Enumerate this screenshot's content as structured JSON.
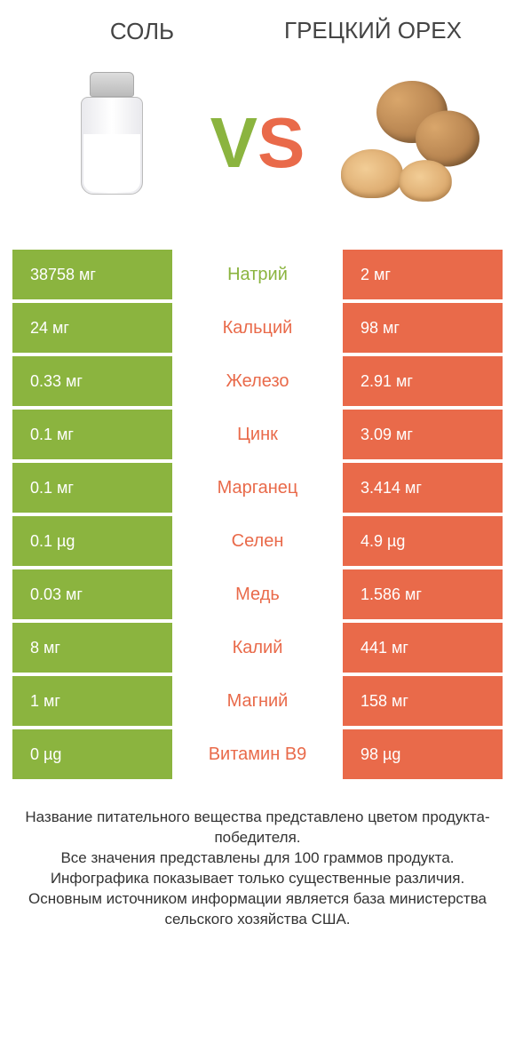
{
  "colors": {
    "green": "#8bb43f",
    "orange": "#e96a4a",
    "bg": "#ffffff",
    "text": "#333333"
  },
  "header": {
    "left_title": "Соль",
    "right_title": "Грецкий орех",
    "vs_v": "V",
    "vs_s": "S"
  },
  "rows": [
    {
      "left": "38758 мг",
      "mid": "Натрий",
      "right": "2 мг",
      "winner": "left"
    },
    {
      "left": "24 мг",
      "mid": "Кальций",
      "right": "98 мг",
      "winner": "right"
    },
    {
      "left": "0.33 мг",
      "mid": "Железо",
      "right": "2.91 мг",
      "winner": "right"
    },
    {
      "left": "0.1 мг",
      "mid": "Цинк",
      "right": "3.09 мг",
      "winner": "right"
    },
    {
      "left": "0.1 мг",
      "mid": "Марганец",
      "right": "3.414 мг",
      "winner": "right"
    },
    {
      "left": "0.1 µg",
      "mid": "Селен",
      "right": "4.9 µg",
      "winner": "right"
    },
    {
      "left": "0.03 мг",
      "mid": "Медь",
      "right": "1.586 мг",
      "winner": "right"
    },
    {
      "left": "8 мг",
      "mid": "Калий",
      "right": "441 мг",
      "winner": "right"
    },
    {
      "left": "1 мг",
      "mid": "Магний",
      "right": "158 мг",
      "winner": "right"
    },
    {
      "left": "0 µg",
      "mid": "Витамин B9",
      "right": "98 µg",
      "winner": "right"
    }
  ],
  "footer": {
    "l1": "Название питательного вещества представлено цветом продукта-победителя.",
    "l2": "Все значения представлены для 100 граммов продукта.",
    "l3": "Инфографика показывает только существенные различия.",
    "l4": "Основным источником информации является база министерства сельского хозяйства США."
  }
}
